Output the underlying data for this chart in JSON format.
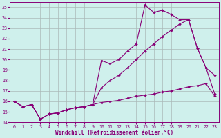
{
  "xlabel": "Windchill (Refroidissement éolien,°C)",
  "background_color": "#cff0ec",
  "grid_color": "#aab8b8",
  "line_color": "#880077",
  "x_values": [
    0,
    1,
    2,
    3,
    4,
    5,
    6,
    7,
    8,
    9,
    10,
    11,
    12,
    13,
    14,
    15,
    16,
    17,
    18,
    19,
    20,
    21,
    22,
    23
  ],
  "series1": [
    16.0,
    15.5,
    15.7,
    14.3,
    14.8,
    14.9,
    15.2,
    15.4,
    15.5,
    15.7,
    15.9,
    16.0,
    16.1,
    16.3,
    16.5,
    16.6,
    16.7,
    16.9,
    17.0,
    17.2,
    17.4,
    17.5,
    17.7,
    16.5
  ],
  "series2": [
    16.0,
    15.5,
    15.7,
    14.3,
    14.8,
    14.9,
    15.2,
    15.4,
    15.5,
    15.7,
    17.3,
    18.0,
    18.5,
    19.2,
    20.0,
    20.8,
    21.5,
    22.2,
    22.8,
    23.4,
    23.8,
    21.1,
    19.2,
    18.5
  ],
  "series3": [
    16.0,
    15.5,
    15.7,
    14.3,
    14.8,
    14.9,
    15.2,
    15.4,
    15.5,
    15.7,
    19.9,
    19.6,
    20.0,
    20.8,
    21.5,
    25.2,
    24.5,
    24.7,
    24.3,
    23.8,
    23.8,
    21.1,
    19.2,
    16.7
  ],
  "ylim_min": 14,
  "ylim_max": 25.5,
  "xlim_min": -0.5,
  "xlim_max": 23.5,
  "yticks": [
    14,
    15,
    16,
    17,
    18,
    19,
    20,
    21,
    22,
    23,
    24,
    25
  ],
  "xticks": [
    0,
    1,
    2,
    3,
    4,
    5,
    6,
    7,
    8,
    9,
    10,
    11,
    12,
    13,
    14,
    15,
    16,
    17,
    18,
    19,
    20,
    21,
    22,
    23
  ],
  "tick_fontsize": 4.8,
  "xlabel_fontsize": 5.5
}
